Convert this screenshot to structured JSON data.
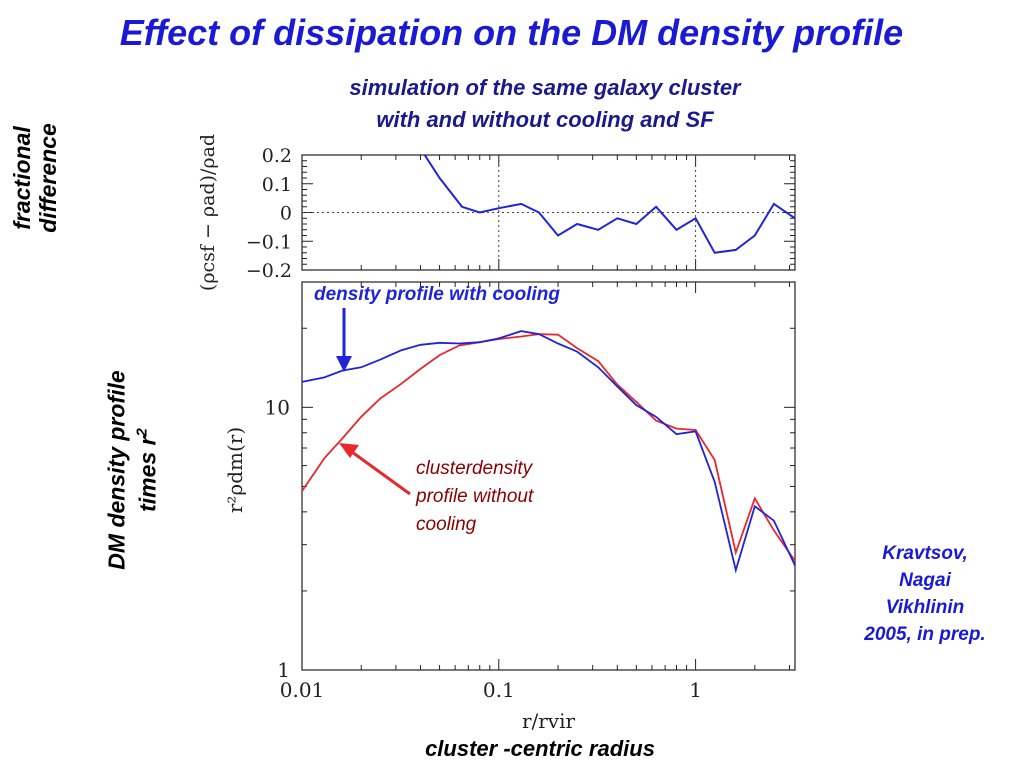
{
  "slide": {
    "title": "Effect of dissipation on the DM density profile",
    "subtitle_line1": "simulation of the same galaxy cluster",
    "subtitle_line2": "with and without cooling and SF",
    "left_label_top": [
      "fractional",
      "difference"
    ],
    "left_label_bottom": [
      "DM density profile",
      "times r",
      "2"
    ],
    "credit": [
      "Kravtsov,",
      "Nagai",
      "Vikhlinin",
      "2005, in prep."
    ],
    "bottom_label": "cluster -centric radius"
  },
  "colors": {
    "title": "#1a1ad6",
    "cooling": "#1f24d9",
    "no_cooling": "#e8282d",
    "annotation_red": "#8b0000"
  },
  "chart_data": [
    {
      "type": "line",
      "xscale": "log",
      "xlim": [
        0.01,
        3.2
      ],
      "ylim": [
        -0.2,
        0.2
      ],
      "yticks": [
        "0.2",
        "0.1",
        "0",
        "−0.1",
        "−0.2"
      ],
      "yticks_values": [
        0.2,
        0.1,
        0,
        -0.1,
        -0.2
      ],
      "ylabel": "(ρcsf − ρad)/ρad",
      "dotted_lines": {
        "y": [
          0
        ],
        "x": [
          0.1,
          1
        ]
      },
      "series": [
        {
          "color": "#1f24d9",
          "x": [
            0.042,
            0.05,
            0.065,
            0.08,
            0.1,
            0.13,
            0.16,
            0.2,
            0.25,
            0.32,
            0.4,
            0.5,
            0.63,
            0.8,
            1.0,
            1.25,
            1.6,
            2.0,
            2.5,
            3.2
          ],
          "y": [
            0.2,
            0.12,
            0.02,
            0.0,
            0.015,
            0.03,
            0.0,
            -0.08,
            -0.04,
            -0.06,
            -0.02,
            -0.04,
            0.02,
            -0.06,
            -0.02,
            -0.14,
            -0.13,
            -0.08,
            0.03,
            -0.02
          ]
        }
      ]
    },
    {
      "type": "line",
      "xscale": "log",
      "yscale": "log",
      "xlim": [
        0.01,
        3.2
      ],
      "ylim": [
        1,
        30
      ],
      "xticks": [
        "0.01",
        "0.1",
        "1"
      ],
      "xticks_values": [
        0.01,
        0.1,
        1
      ],
      "yticks": [
        "10",
        "1"
      ],
      "yticks_values": [
        10,
        1
      ],
      "xlabel": "r/rvir",
      "ylabel": "r²ρdm(r)",
      "series": [
        {
          "name": "density profile with cooling",
          "color": "#1f24d9",
          "x": [
            0.01,
            0.013,
            0.016,
            0.02,
            0.025,
            0.032,
            0.04,
            0.05,
            0.063,
            0.08,
            0.1,
            0.13,
            0.16,
            0.2,
            0.25,
            0.32,
            0.4,
            0.5,
            0.63,
            0.8,
            1.0,
            1.25,
            1.6,
            2.0,
            2.5,
            3.2
          ],
          "y": [
            12.5,
            13.0,
            13.8,
            14.2,
            15.2,
            16.5,
            17.3,
            17.6,
            17.5,
            17.7,
            18.3,
            19.5,
            19.0,
            17.5,
            16.3,
            14.2,
            12.0,
            10.2,
            9.2,
            7.9,
            8.1,
            5.2,
            2.4,
            4.2,
            3.7,
            2.5
          ]
        },
        {
          "name": "clusterdensity profile without cooling",
          "color": "#e8282d",
          "x": [
            0.01,
            0.013,
            0.016,
            0.02,
            0.025,
            0.032,
            0.04,
            0.05,
            0.063,
            0.08,
            0.1,
            0.13,
            0.16,
            0.2,
            0.25,
            0.32,
            0.4,
            0.5,
            0.63,
            0.8,
            1.0,
            1.25,
            1.6,
            2.0,
            2.5,
            3.2
          ],
          "y": [
            4.8,
            6.4,
            7.6,
            9.2,
            10.8,
            12.3,
            14.0,
            15.8,
            17.2,
            17.7,
            18.2,
            18.6,
            19.0,
            18.9,
            16.8,
            15.0,
            12.2,
            10.5,
            8.9,
            8.3,
            8.2,
            6.3,
            2.8,
            4.5,
            3.4,
            2.6
          ]
        }
      ]
    }
  ],
  "annotations": {
    "cooling_label": "density profile with cooling",
    "no_cooling_label": [
      "clusterdensity",
      "profile without",
      "cooling"
    ]
  }
}
